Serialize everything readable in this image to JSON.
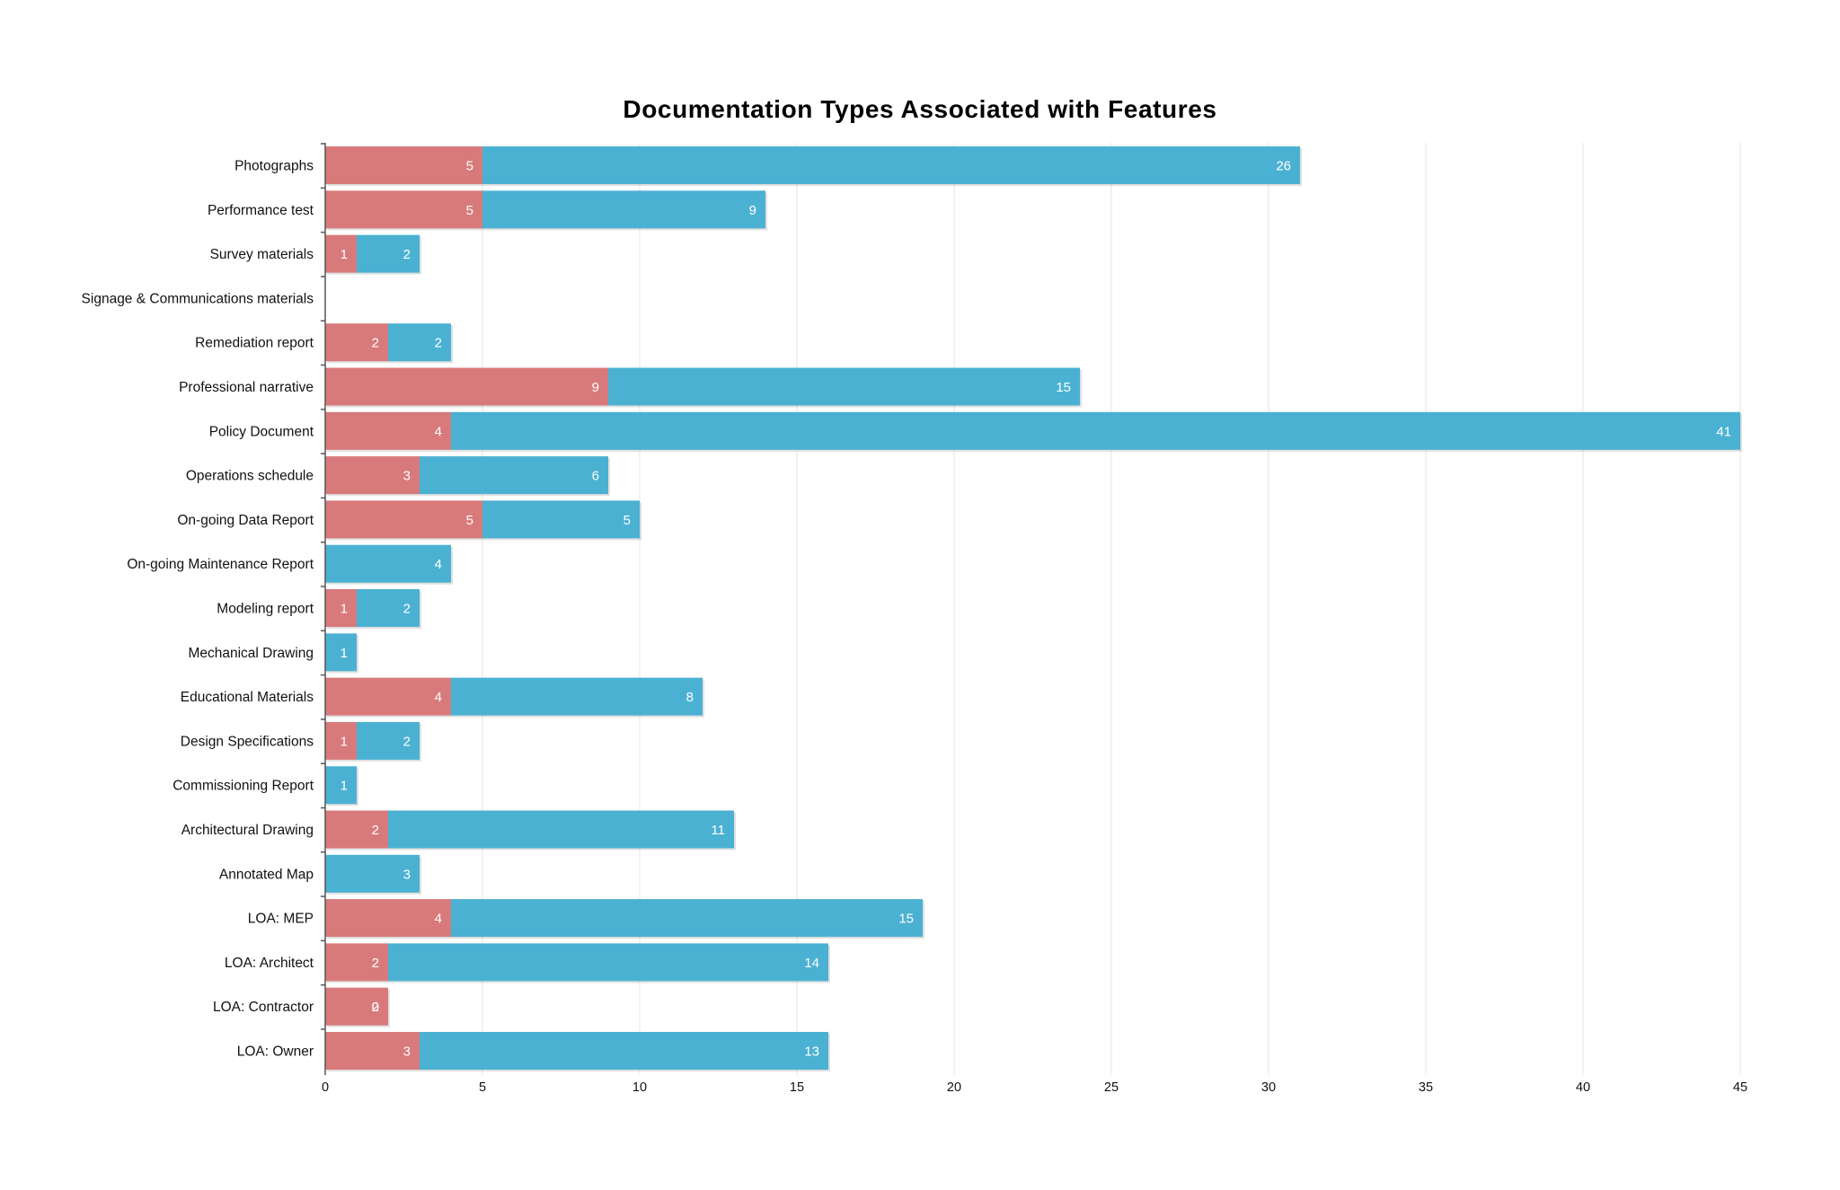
{
  "chart_data": {
    "type": "bar",
    "orientation": "horizontal",
    "stacked": true,
    "title": "Documentation Types Associated with Features",
    "xlabel": "",
    "ylabel": "",
    "xlim": [
      0,
      45
    ],
    "x_ticks": [
      "0",
      "5",
      "10",
      "15",
      "20",
      "25",
      "30",
      "35",
      "40",
      "45"
    ],
    "grid": "vertical",
    "categories": [
      "Photographs",
      "Performance test",
      "Survey materials",
      "Signage & Communications materials",
      "Remediation report",
      "Professional narrative",
      "Policy Document",
      "Operations schedule",
      "On-going Data Report",
      "On-going Maintenance Report",
      "Modeling report",
      "Mechanical Drawing",
      "Educational Materials",
      "Design Specifications",
      "Commissioning Report",
      "Architectural Drawing",
      "Annotated Map",
      "LOA: MEP",
      "LOA: Architect",
      "LOA: Contractor",
      "LOA: Owner"
    ],
    "series": [
      {
        "color": "#d87a7b",
        "values": [
          5,
          5,
          1,
          0,
          2,
          9,
          4,
          3,
          5,
          0,
          1,
          0,
          4,
          1,
          0,
          2,
          0,
          4,
          2,
          2,
          3
        ]
      },
      {
        "color": "#4bb1d3",
        "values": [
          26,
          9,
          2,
          0,
          2,
          15,
          41,
          6,
          5,
          4,
          2,
          1,
          8,
          2,
          1,
          11,
          3,
          15,
          14,
          0,
          13
        ]
      }
    ]
  }
}
